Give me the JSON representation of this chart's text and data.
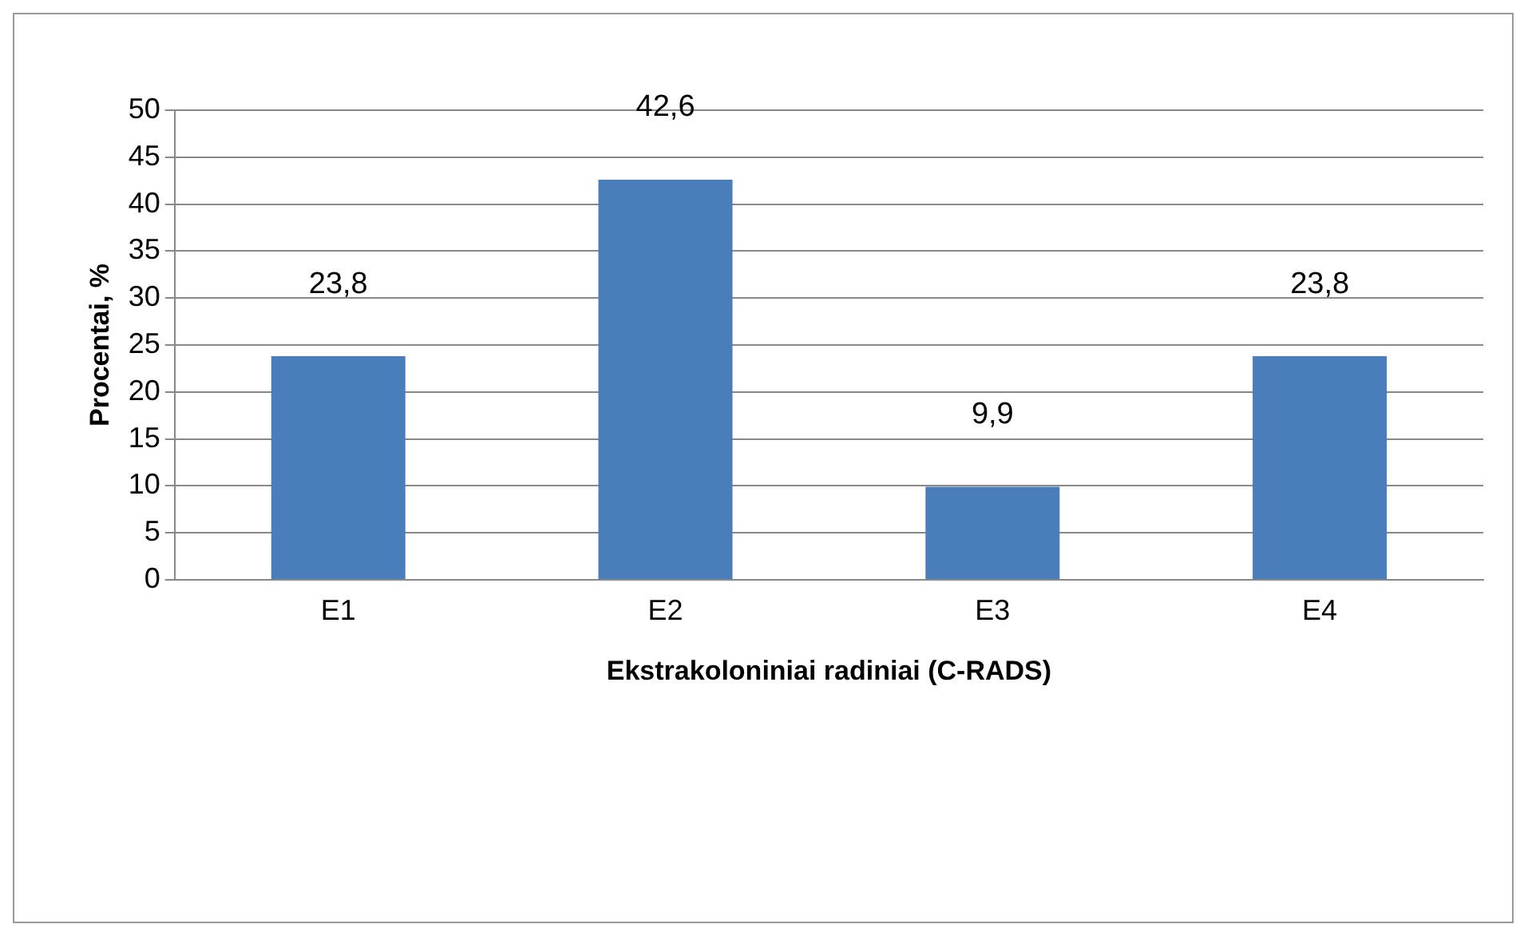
{
  "chart_data": {
    "type": "bar",
    "xlabel": "Ekstrakoloniniai radiniai (C-RADS)",
    "ylabel": "Procentai, %",
    "categories": [
      "E1",
      "E2",
      "E3",
      "E4"
    ],
    "values": [
      23.8,
      42.6,
      9.9,
      23.8
    ],
    "value_labels": [
      "23,8",
      "42,6",
      "9,9",
      "23,8"
    ],
    "color": "#4a7ebb",
    "ylim": [
      0,
      50
    ],
    "yticks": [
      0,
      5,
      10,
      15,
      20,
      25,
      30,
      35,
      40,
      45,
      50
    ],
    "grid": "y",
    "legend": false
  }
}
